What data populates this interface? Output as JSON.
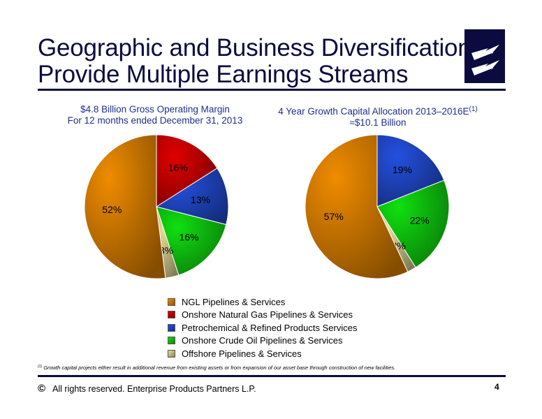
{
  "header": {
    "title_line1": "Geographic and Business Diversification",
    "title_line2": "Provide Multiple Earnings Streams"
  },
  "colors": {
    "title": "#0b0b3f",
    "chart_title": "#1e2e8c",
    "ngl": "#f08c00",
    "onshore_gas": "#e00000",
    "petrochemical": "#2450e0",
    "onshore_crude": "#10e010",
    "offshore": "#e6df9a"
  },
  "chart_data": [
    {
      "type": "pie",
      "title_line1": "$4.8 Billion Gross Operating Margin",
      "title_line2": "For 12 months ended December 31, 2013",
      "slices": [
        {
          "label": "Onshore Natural Gas Pipelines & Services",
          "value": 16,
          "text": "16%",
          "color": "#e00000"
        },
        {
          "label": "Petrochemical & Refined Products Services",
          "value": 13,
          "text": "13%",
          "color": "#2450e0"
        },
        {
          "label": "Onshore Crude Oil Pipelines & Services",
          "value": 16,
          "text": "16%",
          "color": "#10e010"
        },
        {
          "label": "Offshore Pipelines & Services",
          "value": 3,
          "text": "3%",
          "color": "#e6df9a"
        },
        {
          "label": "NGL Pipelines & Services",
          "value": 52,
          "text": "52%",
          "color": "#f08c00"
        }
      ]
    },
    {
      "type": "pie",
      "title_line1": "4 Year Growth Capital Allocation 2013–2016E",
      "title_sup": "(1)",
      "title_line2": "≈$10.1 Billion",
      "slices": [
        {
          "label": "Petrochemical & Refined Products Services",
          "value": 19,
          "text": "19%",
          "color": "#2450e0"
        },
        {
          "label": "Onshore Crude Oil Pipelines & Services",
          "value": 22,
          "text": "22%",
          "color": "#10e010"
        },
        {
          "label": "Offshore Pipelines & Services",
          "value": 2,
          "text": "2%",
          "color": "#e6df9a"
        },
        {
          "label": "NGL Pipelines & Services",
          "value": 57,
          "text": "57%",
          "color": "#f08c00"
        }
      ]
    }
  ],
  "legend": [
    {
      "label": "NGL Pipelines & Services",
      "color": "#f08c00"
    },
    {
      "label": "Onshore Natural Gas Pipelines & Services",
      "color": "#e00000"
    },
    {
      "label": "Petrochemical & Refined Products Services",
      "color": "#2450e0"
    },
    {
      "label": "Onshore Crude Oil Pipelines & Services",
      "color": "#10e010"
    },
    {
      "label": "Offshore Pipelines & Services",
      "color": "#e6df9a"
    }
  ],
  "footnote": {
    "marker": "(1)",
    "text": "Growth capital projects either result in additional revenue from existing assets or from expansion of our asset base through construction of new facilities."
  },
  "footer": {
    "copyright_symbol": "©",
    "copyright_text": "All rights reserved. Enterprise Products Partners L.P.",
    "page_number": "4"
  }
}
